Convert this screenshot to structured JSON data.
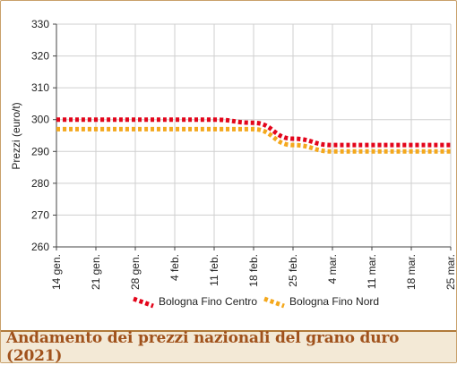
{
  "caption": "Andamento dei prezzi nazionali del grano duro (2021)",
  "chart_data": {
    "type": "line",
    "title": "",
    "xlabel": "",
    "ylabel": "Prezzi (euro/t)",
    "ylim": [
      260,
      330
    ],
    "y_ticks": [
      260,
      270,
      280,
      290,
      300,
      310,
      320,
      330
    ],
    "categories": [
      "14 gen.",
      "21 gen.",
      "28 gen.",
      "4 feb.",
      "11 feb.",
      "18 feb.",
      "25 feb.",
      "4 mar.",
      "11 mar.",
      "18 mar.",
      "25 mar."
    ],
    "grid": true,
    "legend_position": "bottom",
    "series": [
      {
        "name": "Bologna Fino Centro",
        "color": "#e3051b",
        "values": [
          300,
          300,
          300,
          300,
          300,
          299,
          294,
          292,
          292,
          292,
          292
        ]
      },
      {
        "name": "Bologna Fino Nord",
        "color": "#f4a81d",
        "values": [
          297,
          297,
          297,
          297,
          297,
          297,
          292,
          290,
          290,
          290,
          290
        ]
      }
    ]
  }
}
